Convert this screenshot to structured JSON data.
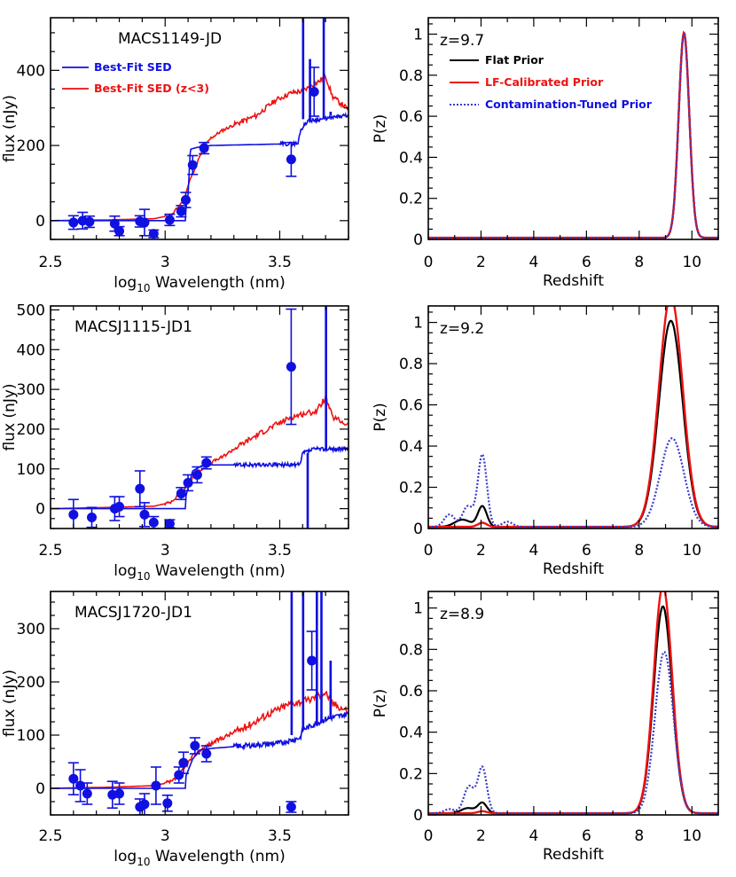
{
  "colors": {
    "blue": "#1010e0",
    "red": "#ee1111",
    "black": "#000000",
    "dotted_blue": "#3a3acc"
  },
  "sed_axes": {
    "xlabel_prefix": "log",
    "xlabel_sub": "10",
    "xlabel_suffix": " Wavelength (nm)",
    "ylabel": "flux (nJy)",
    "xlim": [
      2.5,
      3.8
    ],
    "xticks": [
      2.5,
      3.0,
      3.5
    ],
    "xtick_labels": [
      "2.5",
      "3",
      "3.5"
    ]
  },
  "pz_axes": {
    "xlabel": "Redshift",
    "ylabel": "P(z)",
    "xlim": [
      0,
      11
    ],
    "ylim": [
      0,
      1.08
    ],
    "xticks": [
      0,
      2,
      4,
      6,
      8,
      10
    ],
    "xtick_labels": [
      "0",
      "2",
      "4",
      "6",
      "8",
      "10"
    ],
    "yticks": [
      0,
      0.2,
      0.4,
      0.6,
      0.8,
      1.0
    ],
    "ytick_labels": [
      "0",
      "0.2",
      "0.4",
      "0.6",
      "0.8",
      "1"
    ]
  },
  "sed_legend": {
    "blue": "Best-Fit SED",
    "red": "Best-Fit SED (z<3)"
  },
  "pz_legend": {
    "flat": "Flat Prior",
    "lf": "LF-Calibrated Prior",
    "contam": "Contamination-Tuned Prior"
  },
  "chart_data": [
    {
      "type": "scatter",
      "name": "MACS1149-JD",
      "xlabel": "log10 Wavelength (nm)",
      "ylabel": "flux (nJy)",
      "xlim": [
        2.5,
        3.8
      ],
      "ylim": [
        -50,
        540
      ],
      "yticks": [
        0,
        200,
        400
      ],
      "ytick_labels": [
        "0",
        "200",
        "400"
      ],
      "points": [
        {
          "x": 2.6,
          "y": -5,
          "err": 18
        },
        {
          "x": 2.64,
          "y": 0,
          "err": 22
        },
        {
          "x": 2.67,
          "y": -3,
          "err": 15
        },
        {
          "x": 2.78,
          "y": -8,
          "err": 20
        },
        {
          "x": 2.8,
          "y": -28,
          "err": 12
        },
        {
          "x": 2.89,
          "y": -2,
          "err": 15
        },
        {
          "x": 2.91,
          "y": -5,
          "err": 35
        },
        {
          "x": 2.95,
          "y": -35,
          "err": 10
        },
        {
          "x": 3.02,
          "y": 2,
          "err": 15
        },
        {
          "x": 3.07,
          "y": 25,
          "err": 15
        },
        {
          "x": 3.09,
          "y": 55,
          "err": 20
        },
        {
          "x": 3.12,
          "y": 148,
          "err": 25
        },
        {
          "x": 3.17,
          "y": 193,
          "err": 15
        },
        {
          "x": 3.55,
          "y": 163,
          "err": 45
        },
        {
          "x": 3.65,
          "y": 343,
          "err": 65
        }
      ]
    },
    {
      "type": "scatter",
      "name": "MACSJ1115-JD1",
      "xlabel": "log10 Wavelength (nm)",
      "ylabel": "flux (nJy)",
      "xlim": [
        2.5,
        3.8
      ],
      "ylim": [
        -50,
        510
      ],
      "yticks": [
        0,
        100,
        200,
        300,
        400,
        500
      ],
      "ytick_labels": [
        "0",
        "100",
        "200",
        "300",
        "400",
        "500"
      ],
      "points": [
        {
          "x": 2.6,
          "y": -15,
          "err": 38
        },
        {
          "x": 2.68,
          "y": -22,
          "err": 25
        },
        {
          "x": 2.78,
          "y": 0,
          "err": 30
        },
        {
          "x": 2.8,
          "y": 5,
          "err": 25
        },
        {
          "x": 2.89,
          "y": 50,
          "err": 45
        },
        {
          "x": 2.91,
          "y": -15,
          "err": 30
        },
        {
          "x": 2.95,
          "y": -35,
          "err": 15
        },
        {
          "x": 3.02,
          "y": -38,
          "err": 10
        },
        {
          "x": 3.07,
          "y": 38,
          "err": 15
        },
        {
          "x": 3.1,
          "y": 65,
          "err": 20
        },
        {
          "x": 3.14,
          "y": 85,
          "err": 20
        },
        {
          "x": 3.18,
          "y": 115,
          "err": 15
        },
        {
          "x": 3.55,
          "y": 357,
          "err": 145
        }
      ]
    },
    {
      "type": "scatter",
      "name": "MACSJ1720-JD1",
      "xlabel": "log10 Wavelength (nm)",
      "ylabel": "flux (nJy)",
      "xlim": [
        2.5,
        3.8
      ],
      "ylim": [
        -50,
        370
      ],
      "yticks": [
        0,
        100,
        200,
        300
      ],
      "ytick_labels": [
        "0",
        "100",
        "200",
        "300"
      ],
      "points": [
        {
          "x": 2.6,
          "y": 18,
          "err": 30
        },
        {
          "x": 2.63,
          "y": 5,
          "err": 30
        },
        {
          "x": 2.66,
          "y": -10,
          "err": 20
        },
        {
          "x": 2.77,
          "y": -12,
          "err": 25
        },
        {
          "x": 2.8,
          "y": -10,
          "err": 20
        },
        {
          "x": 2.89,
          "y": -35,
          "err": 15
        },
        {
          "x": 2.91,
          "y": -30,
          "err": 20
        },
        {
          "x": 2.96,
          "y": 5,
          "err": 35
        },
        {
          "x": 3.01,
          "y": -28,
          "err": 15
        },
        {
          "x": 3.06,
          "y": 25,
          "err": 15
        },
        {
          "x": 3.08,
          "y": 48,
          "err": 20
        },
        {
          "x": 3.13,
          "y": 80,
          "err": 15
        },
        {
          "x": 3.18,
          "y": 65,
          "err": 15
        },
        {
          "x": 3.55,
          "y": -35,
          "err": 10
        },
        {
          "x": 3.64,
          "y": 240,
          "err": 55
        }
      ]
    },
    {
      "type": "line",
      "name": "P(z) MACS1149-JD",
      "zlabel": "z=9.7",
      "xlabel": "Redshift",
      "ylabel": "P(z)",
      "series": [
        {
          "name": "Flat Prior",
          "peaks": [
            {
              "mu": 9.7,
              "sigma": 0.2,
              "amp": 1.0
            }
          ]
        },
        {
          "name": "LF-Calibrated Prior",
          "peaks": [
            {
              "mu": 9.7,
              "sigma": 0.2,
              "amp": 1.0
            }
          ]
        },
        {
          "name": "Contamination-Tuned Prior",
          "peaks": [
            {
              "mu": 9.7,
              "sigma": 0.2,
              "amp": 0.995
            }
          ]
        }
      ]
    },
    {
      "type": "line",
      "name": "P(z) MACSJ1115-JD1",
      "zlabel": "z=9.2",
      "xlabel": "Redshift",
      "ylabel": "P(z)",
      "series": [
        {
          "name": "Flat Prior",
          "peaks": [
            {
              "mu": 9.2,
              "sigma": 0.45,
              "amp": 1.0
            },
            {
              "mu": 2.05,
              "sigma": 0.17,
              "amp": 0.1
            },
            {
              "mu": 1.3,
              "sigma": 0.3,
              "amp": 0.035
            }
          ]
        },
        {
          "name": "LF-Calibrated Prior",
          "peaks": [
            {
              "mu": 9.2,
              "sigma": 0.45,
              "amp": 1.12
            },
            {
              "mu": 2.05,
              "sigma": 0.17,
              "amp": 0.02
            }
          ]
        },
        {
          "name": "Contamination-Tuned Prior",
          "peaks": [
            {
              "mu": 9.25,
              "sigma": 0.45,
              "amp": 0.43
            },
            {
              "mu": 2.05,
              "sigma": 0.17,
              "amp": 0.35
            },
            {
              "mu": 1.5,
              "sigma": 0.2,
              "amp": 0.1
            },
            {
              "mu": 0.8,
              "sigma": 0.2,
              "amp": 0.06
            },
            {
              "mu": 3.0,
              "sigma": 0.2,
              "amp": 0.025
            }
          ]
        }
      ]
    },
    {
      "type": "line",
      "name": "P(z) MACSJ1720-JD1",
      "zlabel": "z=8.9",
      "xlabel": "Redshift",
      "ylabel": "P(z)",
      "series": [
        {
          "name": "Flat Prior",
          "peaks": [
            {
              "mu": 8.9,
              "sigma": 0.35,
              "amp": 1.0
            },
            {
              "mu": 2.05,
              "sigma": 0.17,
              "amp": 0.05
            },
            {
              "mu": 1.5,
              "sigma": 0.25,
              "amp": 0.025
            }
          ]
        },
        {
          "name": "LF-Calibrated Prior",
          "peaks": [
            {
              "mu": 8.9,
              "sigma": 0.35,
              "amp": 1.1
            },
            {
              "mu": 2.05,
              "sigma": 0.17,
              "amp": 0.01
            }
          ]
        },
        {
          "name": "Contamination-Tuned Prior",
          "peaks": [
            {
              "mu": 8.95,
              "sigma": 0.35,
              "amp": 0.78
            },
            {
              "mu": 2.05,
              "sigma": 0.17,
              "amp": 0.22
            },
            {
              "mu": 1.55,
              "sigma": 0.2,
              "amp": 0.13
            },
            {
              "mu": 0.8,
              "sigma": 0.2,
              "amp": 0.02
            }
          ]
        }
      ]
    }
  ]
}
